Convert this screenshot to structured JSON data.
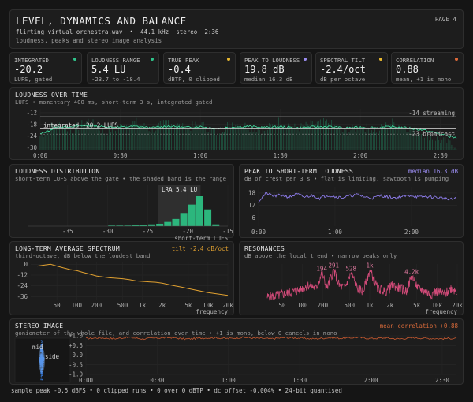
{
  "header": {
    "title": "LEVEL, DYNAMICS AND BALANCE",
    "page": "PAGE 4",
    "file": "flirting_virtual_orchestra.wav  •  44.1 kHz  stereo  2:36",
    "subtitle": "loudness, peaks and stereo image analysis"
  },
  "stats": [
    {
      "label": "INTEGRATED",
      "value": "-20.2",
      "sub": "LUFS, gated",
      "dot": "#2fc48b"
    },
    {
      "label": "LOUDNESS RANGE",
      "value": "5.4 LU",
      "sub": "-23.7 to -18.4",
      "dot": "#2fc48b"
    },
    {
      "label": "TRUE PEAK",
      "value": "-0.4",
      "sub": "dBTP, 0 clipped",
      "dot": "#e8b830"
    },
    {
      "label": "PEAK TO LOUDNESS",
      "value": "19.8 dB",
      "sub": "median 16.3 dB",
      "dot": "#9a8cf0"
    },
    {
      "label": "SPECTRAL TILT",
      "value": "-2.4/oct",
      "sub": "dB per octave",
      "dot": "#e8b830"
    },
    {
      "label": "CORRELATION",
      "value": "0.88",
      "sub": "mean, +1 is mono",
      "dot": "#e06a3a"
    }
  ],
  "loudness_time": {
    "title": "LOUDNESS OVER TIME",
    "subtitle": "LUFS • momentary 400 ms, short-term 3 s, integrated gated",
    "integrated_label": "integrated -20.2 LUFS",
    "streaming_label": "-14 streaming",
    "broadcast_label": "-23 broadcast",
    "y_ticks": [
      "-12",
      "-18",
      "-24",
      "-30"
    ],
    "x_ticks": [
      "0:00",
      "0:30",
      "1:00",
      "1:30",
      "2:00",
      "2:30"
    ]
  },
  "distribution": {
    "title": "LOUDNESS DISTRIBUTION",
    "subtitle": "short-term LUFS above the gate • the shaded band is the range",
    "lra_label": "LRA 5.4 LU",
    "x_ticks": [
      "-35",
      "-30",
      "-25",
      "-20",
      "-15"
    ],
    "xlabel": "short-term LUFS"
  },
  "psr": {
    "title": "PEAK TO SHORT-TERM LOUDNESS",
    "right": "median 16.3 dB",
    "subtitle": "dB of crest per 3 s • flat is limiting, sawtooth is pumping",
    "y_ticks": [
      "18",
      "12",
      "6"
    ],
    "x_ticks": [
      "0:00",
      "1:00",
      "2:00"
    ]
  },
  "spectrum": {
    "title": "LONG-TERM AVERAGE SPECTRUM",
    "right": "tilt -2.4 dB/oct",
    "subtitle": "third-octave, dB below the loudest band",
    "y_ticks": [
      "0",
      "-12",
      "-24",
      "-36"
    ],
    "x_ticks": [
      "50",
      "100",
      "200",
      "500",
      "1k",
      "2k",
      "5k",
      "10k",
      "20k"
    ],
    "xlabel": "frequency"
  },
  "resonances": {
    "title": "RESONANCES",
    "subtitle": "dB above the local trend • narrow peaks only",
    "peaks": [
      "194",
      "291",
      "528",
      "1k",
      "4.2k"
    ],
    "x_ticks": [
      "50",
      "100",
      "200",
      "500",
      "1k",
      "2k",
      "5k",
      "10k",
      "20k"
    ],
    "xlabel": "frequency"
  },
  "stereo": {
    "title": "STEREO IMAGE",
    "right": "mean correlation +0.88",
    "subtitle": "goniometer of the whole file, and correlation over time • +1 is mono, below 0 cancels in mono",
    "mid_label": "mid",
    "side_label": "side",
    "y_ticks": [
      "+1.0",
      "+0.5",
      "0.0",
      "-0.5",
      "-1.0"
    ],
    "x_ticks": [
      "0:00",
      "0:30",
      "1:00",
      "1:30",
      "2:00",
      "2:30"
    ]
  },
  "footer": "sample peak -0.5 dBFS • 0 clipped runs • 0 over 0 dBTP • dc offset -0.004% • 24-bit quantised",
  "chart_data": [
    {
      "type": "line",
      "title": "LOUDNESS OVER TIME",
      "xlabel": "",
      "ylabel": "LUFS",
      "xlim": [
        0,
        156
      ],
      "ylim": [
        -31,
        -10
      ],
      "reference_lines": [
        {
          "label": "streaming",
          "y": -14
        },
        {
          "label": "integrated",
          "y": -20.2
        },
        {
          "label": "broadcast",
          "y": -23
        }
      ],
      "series": [
        {
          "name": "momentary",
          "color": "#1f5e47",
          "x": [
            0,
            6,
            12,
            18,
            24,
            30,
            36,
            42,
            48,
            54,
            60,
            66,
            72,
            78,
            84,
            90,
            96,
            102,
            108,
            114,
            120,
            126,
            132,
            138,
            144,
            150,
            156
          ],
          "y": [
            -24,
            -17,
            -21,
            -16,
            -22,
            -19,
            -17,
            -21,
            -16,
            -20,
            -18,
            -22,
            -17,
            -19,
            -21,
            -16,
            -20,
            -18,
            -17,
            -22,
            -19,
            -21,
            -17,
            -20,
            -23,
            -26,
            -29
          ]
        },
        {
          "name": "short-term",
          "color": "#3fd49a",
          "x": [
            0,
            6,
            12,
            18,
            24,
            30,
            36,
            42,
            48,
            54,
            60,
            66,
            72,
            78,
            84,
            90,
            96,
            102,
            108,
            114,
            120,
            126,
            132,
            138,
            144,
            150,
            156
          ],
          "y": [
            -23,
            -19.5,
            -19,
            -18.6,
            -19.2,
            -19.4,
            -19,
            -19.8,
            -18.8,
            -19.6,
            -19.1,
            -20.1,
            -19.4,
            -19,
            -19.6,
            -19.2,
            -19.8,
            -19.3,
            -19.1,
            -19.9,
            -19.4,
            -19.7,
            -19.2,
            -19.9,
            -21,
            -23,
            -25
          ]
        }
      ]
    },
    {
      "type": "bar",
      "title": "LOUDNESS DISTRIBUTION",
      "xlabel": "short-term LUFS",
      "xlim": [
        -40,
        -15
      ],
      "lra": [
        -23.7,
        -18.4
      ],
      "categories": [
        -30,
        -29,
        -28,
        -27,
        -26,
        -25,
        -24,
        -23,
        -22,
        -21,
        -20,
        -19,
        -18,
        -17
      ],
      "values": [
        1,
        1,
        1,
        2,
        2,
        3,
        4,
        7,
        12,
        22,
        36,
        50,
        28,
        3
      ]
    },
    {
      "type": "line",
      "title": "PEAK TO SHORT-TERM LOUDNESS",
      "ylabel": "dB",
      "xlim": [
        0,
        156
      ],
      "ylim": [
        2,
        21
      ],
      "series": [
        {
          "name": "crest",
          "color": "#8c7be8",
          "x": [
            0,
            6,
            12,
            18,
            24,
            30,
            36,
            42,
            48,
            54,
            60,
            66,
            72,
            78,
            84,
            90,
            96,
            102,
            108,
            114,
            120,
            126,
            132,
            138,
            144,
            150,
            156
          ],
          "y": [
            14,
            18,
            16.5,
            17,
            16,
            17.5,
            16,
            16.8,
            15.5,
            17,
            16.2,
            15.8,
            16.6,
            17.2,
            16,
            15.6,
            16.8,
            16.1,
            15.7,
            16.4,
            16.9,
            15.9,
            16.3,
            16,
            15.6,
            14.8,
            15.4
          ]
        }
      ]
    },
    {
      "type": "line",
      "title": "LONG-TERM AVERAGE SPECTRUM",
      "xlabel": "frequency",
      "ylabel": "dB",
      "ylim": [
        -40,
        2
      ],
      "series": [
        {
          "name": "spectrum",
          "color": "#e0a030",
          "x": [
            25,
            32,
            40,
            50,
            63,
            80,
            100,
            125,
            160,
            200,
            250,
            315,
            400,
            500,
            630,
            800,
            1000,
            1250,
            1600,
            2000,
            2500,
            3150,
            4000,
            5000,
            6300,
            8000,
            10000,
            12500,
            16000,
            20000
          ],
          "y": [
            -2,
            -1,
            0,
            -2,
            -4,
            -6,
            -7,
            -9,
            -11,
            -13,
            -14,
            -15,
            -15.5,
            -16,
            -17,
            -18.5,
            -19,
            -19.5,
            -20,
            -21,
            -22.5,
            -24,
            -25.5,
            -27,
            -28.5,
            -30,
            -31.5,
            -32.5,
            -33.5,
            -34.5
          ]
        }
      ]
    },
    {
      "type": "line",
      "title": "RESONANCES",
      "xlabel": "frequency",
      "ylabel": "dB",
      "series": [
        {
          "name": "resonance",
          "color": "#d04a78",
          "x": [
            30,
            50,
            80,
            120,
            160,
            194,
            230,
            291,
            350,
            420,
            528,
            650,
            800,
            1000,
            1300,
            1700,
            2200,
            2800,
            3500,
            4200,
            5200,
            6500,
            8000,
            10000,
            13000,
            16000,
            20000
          ],
          "y": [
            1,
            2,
            3,
            5,
            4,
            9,
            4,
            10,
            5,
            4,
            9,
            4,
            3,
            10,
            4,
            3,
            5,
            4,
            3,
            8,
            4,
            3,
            2,
            3,
            2,
            4,
            3
          ]
        }
      ],
      "annotations": [
        "194",
        "291",
        "528",
        "1k",
        "4.2k"
      ]
    },
    {
      "type": "line",
      "title": "STEREO IMAGE",
      "ylabel": "correlation",
      "xlim": [
        0,
        156
      ],
      "ylim": [
        -1,
        1
      ],
      "series": [
        {
          "name": "correlation",
          "color": "#c85a30",
          "x": [
            0,
            6,
            12,
            18,
            24,
            30,
            36,
            42,
            48,
            54,
            60,
            66,
            72,
            78,
            84,
            90,
            96,
            102,
            108,
            114,
            120,
            126,
            132,
            138,
            144,
            150,
            156
          ],
          "y": [
            0.86,
            0.9,
            0.85,
            0.92,
            0.84,
            0.89,
            0.91,
            0.83,
            0.88,
            0.9,
            0.86,
            0.92,
            0.87,
            0.85,
            0.91,
            0.88,
            0.84,
            0.9,
            0.87,
            0.92,
            0.86,
            0.89,
            0.84,
            0.9,
            0.87,
            0.85,
            0.88
          ]
        }
      ]
    }
  ]
}
